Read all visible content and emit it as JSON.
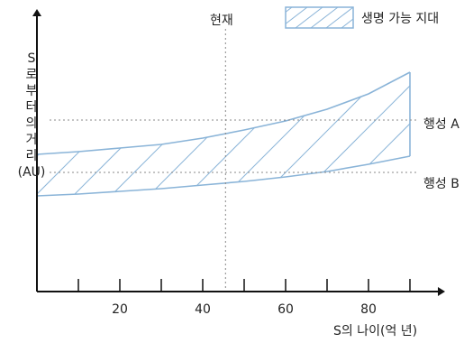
{
  "chart_data": {
    "type": "area",
    "ylabel_lines": [
      "S",
      "로",
      "부",
      "터",
      "의",
      "거",
      "리",
      "(AU)"
    ],
    "xlabel": "S의 나이(억 년)",
    "xlim": [
      0,
      100
    ],
    "x_ticks": [
      20,
      40,
      60,
      80
    ],
    "x_minor_ticks": [
      10,
      30,
      50,
      70,
      90
    ],
    "ylim": [
      0,
      3
    ],
    "legend": {
      "label": "생명 가능 지대",
      "position": "top-right",
      "pattern": "hatched"
    },
    "series": [
      {
        "name": "생명 가능 지대",
        "x": [
          0,
          10,
          20,
          30,
          40,
          50,
          60,
          70,
          80,
          90
        ],
        "lower": [
          1.06,
          1.08,
          1.11,
          1.14,
          1.18,
          1.22,
          1.27,
          1.33,
          1.41,
          1.5
        ],
        "upper": [
          1.52,
          1.55,
          1.59,
          1.63,
          1.7,
          1.79,
          1.89,
          2.02,
          2.19,
          2.43
        ]
      }
    ],
    "reference_lines": [
      {
        "orientation": "vertical",
        "x": 45.5,
        "label": "현재"
      },
      {
        "orientation": "horizontal",
        "y": 1.9,
        "label": "행성 A"
      },
      {
        "orientation": "horizontal",
        "y": 1.32,
        "label": "행성 B"
      }
    ],
    "colors": {
      "zone": "#8ab4d8",
      "axis": "#111111",
      "reference": "#888888"
    }
  }
}
